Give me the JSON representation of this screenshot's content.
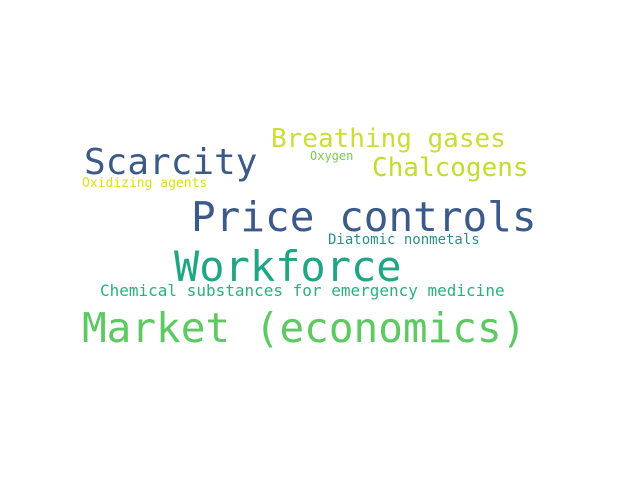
{
  "word_cloud": {
    "words": [
      {
        "text": "Market (economics)",
        "color": "#5ec962"
      },
      {
        "text": "Price controls",
        "color": "#3b5a8a"
      },
      {
        "text": "Workforce",
        "color": "#21a685"
      },
      {
        "text": "Scarcity",
        "color": "#3b5a8a"
      },
      {
        "text": "Breathing gases",
        "color": "#cddc39"
      },
      {
        "text": "Chalcogens",
        "color": "#c5dc2f"
      },
      {
        "text": "Chemical substances for emergency medicine",
        "color": "#2ab07f"
      },
      {
        "text": "Diatomic nonmetals",
        "color": "#2a8f8a"
      },
      {
        "text": "Oxidizing agents",
        "color": "#d8e219"
      },
      {
        "text": "Oxygen",
        "color": "#7ac94f"
      }
    ]
  }
}
